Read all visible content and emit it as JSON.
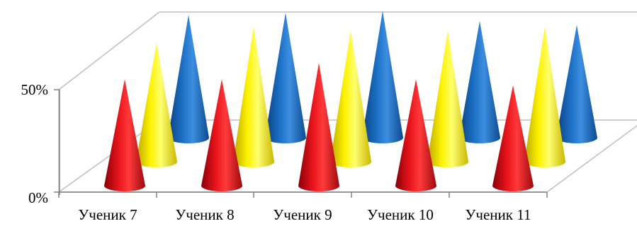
{
  "chart_data": {
    "type": "bar",
    "subtype": "3d-cone",
    "categories": [
      "Ученик 7",
      "Ученик 8",
      "Ученик 9",
      "Ученик 10",
      "Ученик 11"
    ],
    "series": [
      {
        "color": "#e8141c",
        "values": [
          0.52,
          0.52,
          0.6,
          0.52,
          0.49
        ]
      },
      {
        "color": "#fff200",
        "values": [
          0.58,
          0.66,
          0.64,
          0.64,
          0.66
        ]
      },
      {
        "color": "#1a6fc4",
        "values": [
          0.6,
          0.61,
          0.62,
          0.57,
          0.55
        ]
      }
    ],
    "yticks": [
      "0%",
      "50%"
    ],
    "ylim": [
      0,
      1
    ],
    "grid": false,
    "legend": "none"
  }
}
